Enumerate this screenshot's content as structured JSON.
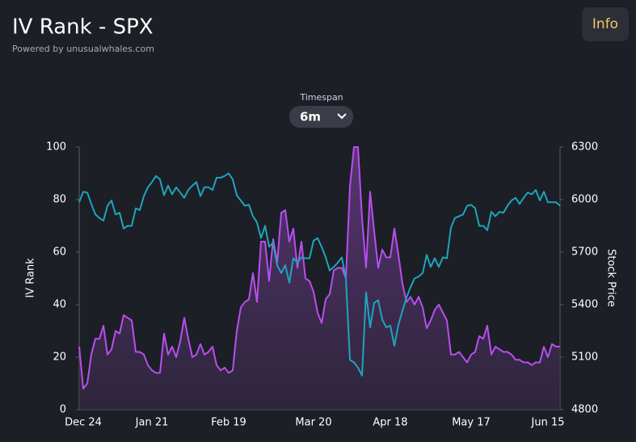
{
  "controls": {
    "info": "Info",
    "timespan_label": "Timespan",
    "timespan_value": "6m"
  },
  "chart_data": {
    "type": "line",
    "title": "IV Rank - SPX",
    "subtitle": "Powered by unusualwhales.com",
    "categories": [
      null,
      "Dec 24",
      null,
      null,
      null,
      null,
      null,
      null,
      null,
      null,
      null,
      null,
      null,
      null,
      null,
      null,
      null,
      null,
      "Jan 21",
      null,
      null,
      null,
      null,
      null,
      null,
      null,
      null,
      null,
      null,
      null,
      null,
      null,
      null,
      null,
      null,
      null,
      null,
      "Feb 19",
      null,
      null,
      null,
      null,
      null,
      null,
      null,
      null,
      null,
      null,
      null,
      null,
      null,
      null,
      null,
      null,
      null,
      null,
      null,
      null,
      "Mar 20",
      null,
      null,
      null,
      null,
      null,
      null,
      null,
      null,
      null,
      null,
      null,
      null,
      null,
      null,
      null,
      null,
      null,
      null,
      "Apr 18",
      null,
      null,
      null,
      null,
      null,
      null,
      null,
      null,
      null,
      null,
      null,
      null,
      null,
      null,
      null,
      null,
      null,
      null,
      null,
      "May 17",
      null,
      null,
      null,
      null,
      null,
      null,
      null,
      null,
      null,
      null,
      null,
      null,
      null,
      null,
      null,
      null,
      null,
      null,
      "Jun 15",
      null,
      null,
      null
    ],
    "series": [
      {
        "name": "IV Rank",
        "color": "#b94ef0",
        "axis": "y",
        "area": true,
        "values": [
          24,
          8,
          10,
          21,
          27,
          27,
          32,
          21,
          23,
          30,
          29,
          36,
          35,
          34,
          22,
          22,
          21,
          17,
          15,
          14,
          14,
          29,
          21,
          24,
          20,
          26,
          35,
          27,
          20,
          21,
          25,
          21,
          22,
          24,
          17,
          15,
          16,
          14,
          15,
          30,
          39,
          41,
          42,
          52,
          41,
          64,
          64,
          49,
          65,
          56,
          75,
          76,
          64,
          69,
          54,
          64,
          50,
          49,
          45,
          37,
          33,
          42,
          44,
          53,
          54,
          54,
          50,
          85,
          100,
          100,
          73,
          54,
          83,
          68,
          54,
          61,
          58,
          58,
          69,
          59,
          48,
          41,
          43,
          40,
          43,
          39,
          31,
          34,
          38,
          40,
          37,
          34,
          21,
          21,
          22,
          20,
          18,
          21,
          22,
          28,
          27,
          32,
          21,
          24,
          23,
          22,
          22,
          21,
          19,
          19,
          18,
          18,
          17,
          18,
          18,
          24,
          20,
          25,
          24,
          24
        ]
      },
      {
        "name": "Stock Price",
        "color": "#1ea5bb",
        "axis": "y2",
        "values": [
          5985,
          6045,
          6040,
          5975,
          5915,
          5895,
          5880,
          5965,
          5995,
          5915,
          5925,
          5835,
          5850,
          5850,
          5950,
          5940,
          6020,
          6070,
          6100,
          6135,
          6115,
          6025,
          6080,
          6030,
          6070,
          6040,
          6010,
          6055,
          6080,
          6100,
          6020,
          6070,
          6070,
          6055,
          6125,
          6125,
          6135,
          6150,
          6115,
          6025,
          5995,
          5965,
          5970,
          5905,
          5870,
          5780,
          5850,
          5730,
          5755,
          5625,
          5580,
          5625,
          5525,
          5665,
          5640,
          5670,
          5665,
          5665,
          5765,
          5780,
          5730,
          5670,
          5595,
          5615,
          5640,
          5670,
          5550,
          5085,
          5070,
          5040,
          4995,
          5470,
          5270,
          5410,
          5425,
          5315,
          5270,
          5280,
          5165,
          5285,
          5365,
          5440,
          5500,
          5550,
          5560,
          5580,
          5685,
          5615,
          5665,
          5615,
          5670,
          5665,
          5840,
          5895,
          5905,
          5915,
          5965,
          5970,
          5950,
          5850,
          5850,
          5825,
          5930,
          5905,
          5930,
          5925,
          5965,
          5995,
          6010,
          5975,
          6010,
          6040,
          6030,
          6055,
          5995,
          6045,
          5985,
          5985,
          5985,
          5965
        ]
      }
    ],
    "ylim": [
      0,
      100
    ],
    "yticks": [
      0,
      20,
      40,
      60,
      80,
      100
    ],
    "y2lim": [
      4800,
      6300
    ],
    "y2ticks": [
      4800,
      5100,
      5400,
      5700,
      6000,
      6300
    ],
    "grid": false
  }
}
